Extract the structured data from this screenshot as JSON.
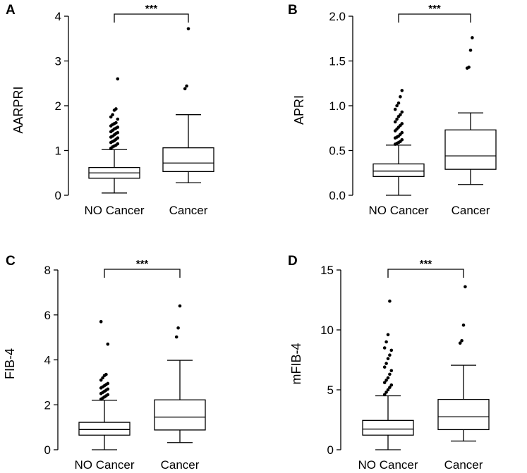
{
  "chart_data": [
    {
      "type": "box",
      "panel": "A",
      "ylabel": "AARPRI",
      "ylim": [
        0,
        4
      ],
      "yticks": [
        "0",
        "1",
        "2",
        "3",
        "4"
      ],
      "yticks_values": [
        0,
        1,
        2,
        3,
        4
      ],
      "categories": [
        "NO Cancer",
        "Cancer"
      ],
      "significance": "***",
      "boxes": [
        {
          "name": "NO Cancer",
          "whisker_low": 0.05,
          "q1": 0.38,
          "median": 0.5,
          "q3": 0.62,
          "whisker_high": 1.02,
          "outliers": [
            1.05,
            1.08,
            1.1,
            1.12,
            1.15,
            1.18,
            1.2,
            1.22,
            1.25,
            1.28,
            1.3,
            1.32,
            1.35,
            1.38,
            1.4,
            1.42,
            1.45,
            1.48,
            1.5,
            1.52,
            1.55,
            1.58,
            1.6,
            1.62,
            1.7,
            1.75,
            1.8,
            1.9,
            1.93,
            2.6
          ]
        },
        {
          "name": "Cancer",
          "whisker_low": 0.28,
          "q1": 0.53,
          "median": 0.72,
          "q3": 1.06,
          "whisker_high": 1.8,
          "outliers": [
            2.38,
            2.44,
            3.72
          ]
        }
      ]
    },
    {
      "type": "box",
      "panel": "B",
      "ylabel": "APRI",
      "ylim": [
        0,
        2
      ],
      "yticks": [
        "0.0",
        "0.5",
        "1.0",
        "1.5",
        "2.0"
      ],
      "yticks_values": [
        0,
        0.5,
        1,
        1.5,
        2
      ],
      "categories": [
        "NO Cancer",
        "Cancer"
      ],
      "significance": "***",
      "boxes": [
        {
          "name": "NO Cancer",
          "whisker_low": 0.0,
          "q1": 0.21,
          "median": 0.27,
          "q3": 0.35,
          "whisker_high": 0.56,
          "outliers": [
            0.57,
            0.58,
            0.59,
            0.6,
            0.62,
            0.64,
            0.65,
            0.66,
            0.68,
            0.7,
            0.72,
            0.74,
            0.76,
            0.78,
            0.8,
            0.82,
            0.85,
            0.88,
            0.9,
            0.93,
            0.96,
            1.0,
            1.03,
            1.1,
            1.17
          ]
        },
        {
          "name": "Cancer",
          "whisker_low": 0.12,
          "q1": 0.29,
          "median": 0.44,
          "q3": 0.73,
          "whisker_high": 0.92,
          "outliers": [
            1.42,
            1.43,
            1.62,
            1.76
          ]
        }
      ]
    },
    {
      "type": "box",
      "panel": "C",
      "ylabel": "FIB-4",
      "ylim": [
        0,
        8
      ],
      "yticks": [
        "0",
        "2",
        "4",
        "6",
        "8"
      ],
      "yticks_values": [
        0,
        2,
        4,
        6,
        8
      ],
      "categories": [
        "NO Cancer",
        "Cancer"
      ],
      "significance": "***",
      "boxes": [
        {
          "name": "NO Cancer",
          "whisker_low": 0.0,
          "q1": 0.65,
          "median": 0.9,
          "q3": 1.22,
          "whisker_high": 2.2,
          "outliers": [
            2.25,
            2.3,
            2.35,
            2.4,
            2.45,
            2.5,
            2.55,
            2.6,
            2.65,
            2.7,
            2.75,
            2.8,
            2.85,
            2.9,
            2.95,
            3.1,
            3.2,
            3.3,
            3.35,
            4.7,
            5.7
          ]
        },
        {
          "name": "Cancer",
          "whisker_low": 0.32,
          "q1": 0.88,
          "median": 1.45,
          "q3": 2.22,
          "whisker_high": 3.98,
          "outliers": [
            5.02,
            5.42,
            6.4
          ]
        }
      ]
    },
    {
      "type": "box",
      "panel": "D",
      "ylabel": "mFIB-4",
      "ylim": [
        0,
        15
      ],
      "yticks": [
        "0",
        "5",
        "10",
        "15"
      ],
      "yticks_values": [
        0,
        5,
        10,
        15
      ],
      "categories": [
        "NO Cancer",
        "Cancer"
      ],
      "significance": "***",
      "boxes": [
        {
          "name": "NO Cancer",
          "whisker_low": 0.0,
          "q1": 1.22,
          "median": 1.72,
          "q3": 2.45,
          "whisker_high": 4.5,
          "outliers": [
            4.6,
            4.8,
            5.0,
            5.2,
            5.4,
            5.6,
            5.8,
            6.0,
            6.3,
            6.6,
            6.9,
            7.2,
            7.6,
            7.9,
            8.3,
            8.5,
            9.0,
            9.6,
            12.4
          ]
        },
        {
          "name": "Cancer",
          "whisker_low": 0.72,
          "q1": 1.68,
          "median": 2.75,
          "q3": 4.2,
          "whisker_high": 7.05,
          "outliers": [
            8.9,
            9.1,
            10.4,
            13.6
          ]
        }
      ]
    }
  ]
}
